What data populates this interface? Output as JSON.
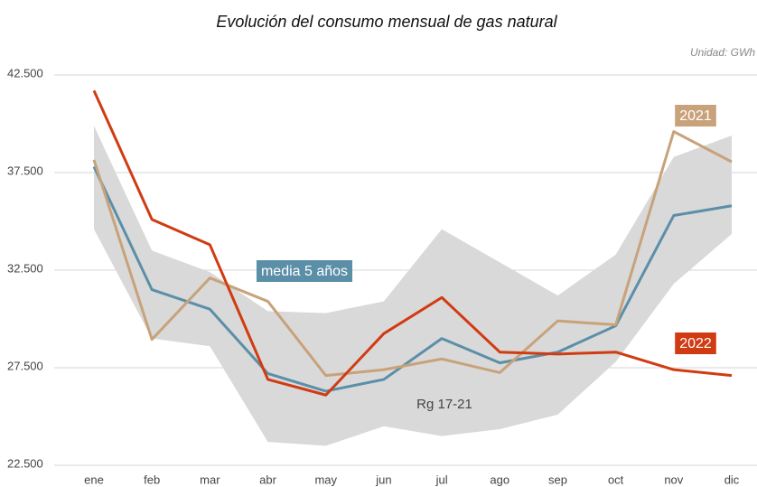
{
  "chart_data": {
    "type": "line",
    "title": "Evolución del consumo mensual de gas natural",
    "subtitle": "Unidad: GWh",
    "categories": [
      "ene",
      "feb",
      "mar",
      "abr",
      "may",
      "jun",
      "jul",
      "ago",
      "sep",
      "oct",
      "nov",
      "dic"
    ],
    "band": {
      "name": "Rg 17-21",
      "color": "#d9d9d9",
      "upper": [
        39900,
        33500,
        32400,
        30400,
        30300,
        30900,
        34600,
        32900,
        31200,
        33300,
        38300,
        39400
      ],
      "lower": [
        34600,
        29000,
        28600,
        23700,
        23500,
        24500,
        24000,
        24350,
        25100,
        27800,
        31800,
        34350
      ]
    },
    "series": [
      {
        "name": "media 5 años",
        "color": "#5b8fa8",
        "values": [
          37800,
          31500,
          30500,
          27200,
          26300,
          26900,
          29000,
          27750,
          28300,
          29650,
          35300,
          35800
        ]
      },
      {
        "name": "2021",
        "color": "#c8a27a",
        "values": [
          38150,
          28950,
          32100,
          30900,
          27100,
          27400,
          27950,
          27250,
          29900,
          29700,
          39600,
          38050
        ]
      },
      {
        "name": "2022",
        "color": "#d13b12",
        "values": [
          41700,
          35100,
          33800,
          26900,
          26100,
          29250,
          31100,
          28300,
          28200,
          28300,
          27400,
          27100
        ]
      }
    ],
    "ylim": [
      22500,
      42500
    ],
    "yticks": [
      {
        "value": 22500,
        "label": "22.500"
      },
      {
        "value": 27500,
        "label": "27.500"
      },
      {
        "value": 32500,
        "label": "32.500"
      },
      {
        "value": 37500,
        "label": "37.500"
      },
      {
        "value": 42500,
        "label": "42.500"
      }
    ],
    "grid": true
  }
}
